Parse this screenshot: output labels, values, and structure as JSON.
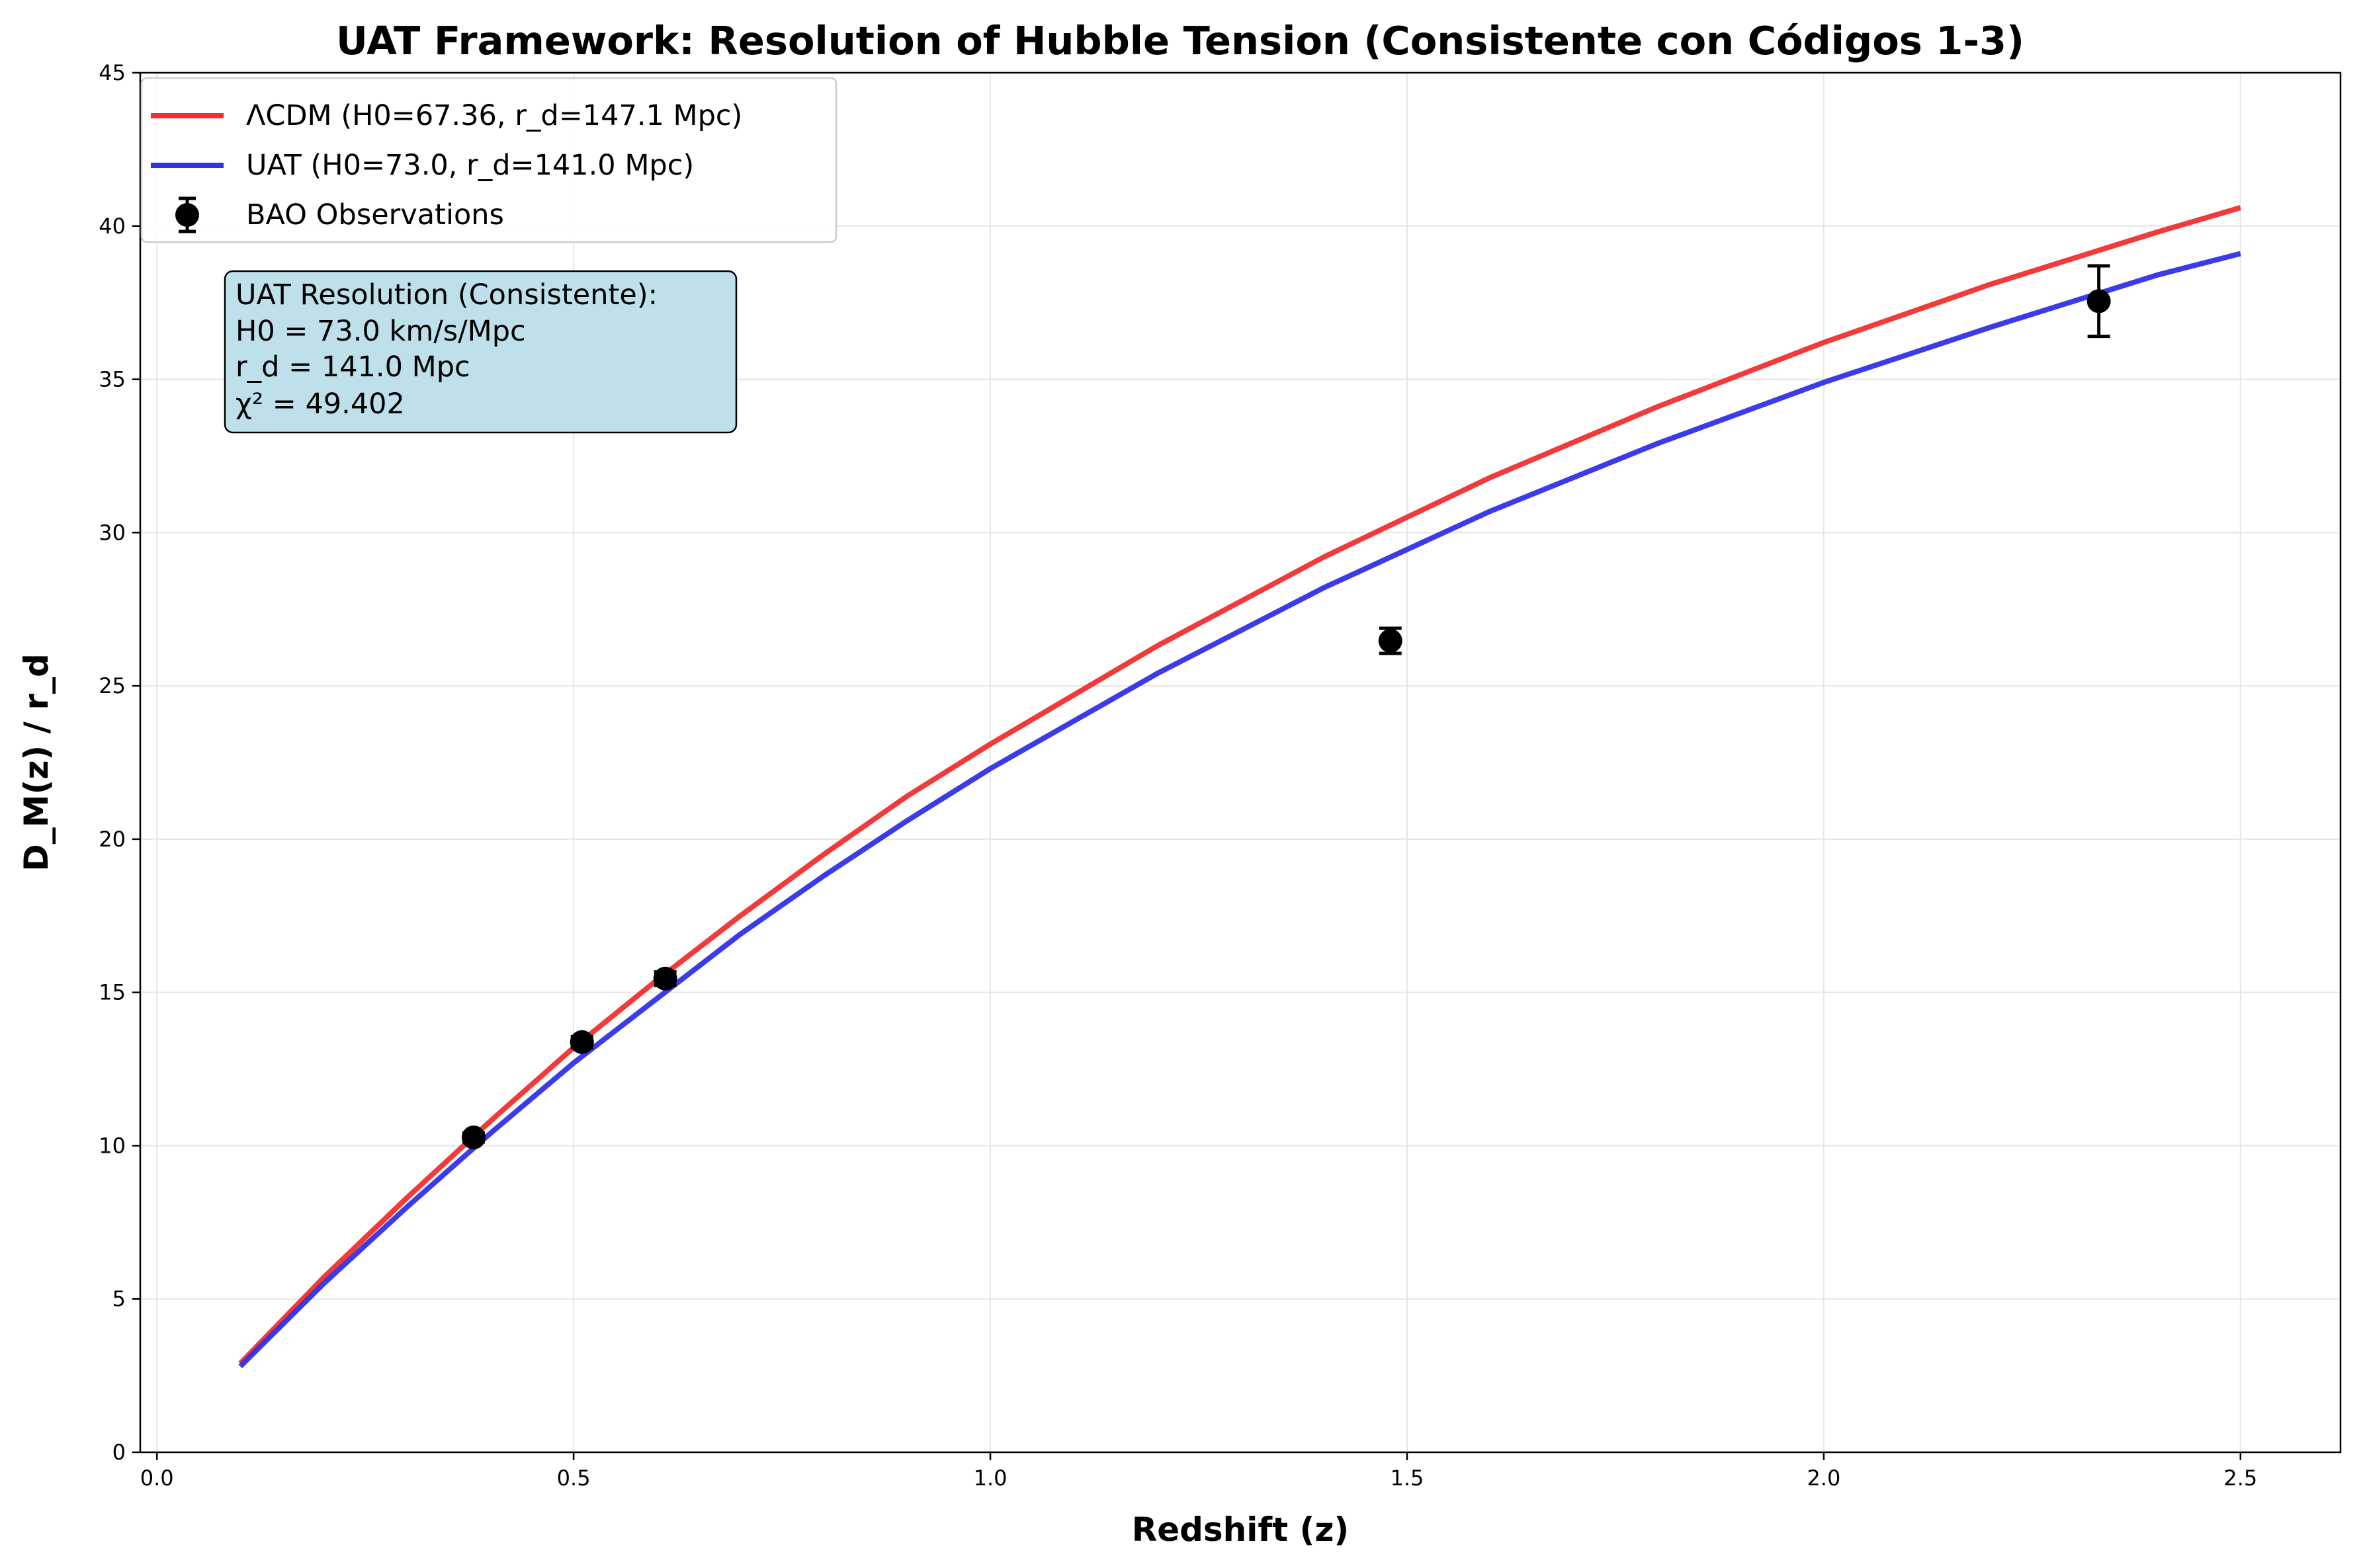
{
  "chart_data": {
    "type": "line",
    "title": "UAT Framework: Resolution of Hubble Tension (Consistente con Códigos 1-3)",
    "xlabel": "Redshift (z)",
    "ylabel": "D_M(z) / r_d",
    "xlim": [
      -0.02,
      2.62
    ],
    "ylim": [
      0,
      45
    ],
    "xticks": [
      0.0,
      0.5,
      1.0,
      1.5,
      2.0,
      2.5
    ],
    "xtick_labels": [
      "0.0",
      "0.5",
      "1.0",
      "1.5",
      "2.0",
      "2.5"
    ],
    "yticks": [
      0,
      5,
      10,
      15,
      20,
      25,
      30,
      35,
      40,
      45
    ],
    "ytick_labels": [
      "0",
      "5",
      "10",
      "15",
      "20",
      "25",
      "30",
      "35",
      "40",
      "45"
    ],
    "grid": true,
    "legend_position": "top-left",
    "series": [
      {
        "name": "ΛCDM (H0=67.36, r_d=147.1 Mpc)",
        "kind": "line",
        "color": "#f03030",
        "x": [
          0.1,
          0.2,
          0.3,
          0.4,
          0.5,
          0.6,
          0.7,
          0.8,
          0.9,
          1.0,
          1.2,
          1.4,
          1.6,
          1.8,
          2.0,
          2.2,
          2.4,
          2.5
        ],
        "y": [
          2.9,
          5.7,
          8.3,
          10.8,
          13.2,
          15.4,
          17.5,
          19.5,
          21.4,
          23.1,
          26.3,
          29.2,
          31.8,
          34.1,
          36.2,
          38.1,
          39.8,
          40.6
        ]
      },
      {
        "name": "UAT (H0=73.0, r_d=141.0 Mpc)",
        "kind": "line",
        "color": "#3030e8",
        "x": [
          0.1,
          0.2,
          0.3,
          0.4,
          0.5,
          0.6,
          0.7,
          0.8,
          0.9,
          1.0,
          1.2,
          1.4,
          1.6,
          1.8,
          2.0,
          2.2,
          2.4,
          2.5
        ],
        "y": [
          2.8,
          5.5,
          8.0,
          10.4,
          12.7,
          14.8,
          16.9,
          18.8,
          20.6,
          22.3,
          25.4,
          28.2,
          30.7,
          32.9,
          34.9,
          36.7,
          38.4,
          39.1
        ]
      },
      {
        "name": "BAO Observations",
        "kind": "errorbar",
        "color": "#000000",
        "x": [
          0.38,
          0.51,
          0.61,
          1.48,
          2.33
        ],
        "y": [
          10.27,
          13.38,
          15.45,
          26.47,
          37.55
        ],
        "yerr": [
          0.15,
          0.18,
          0.22,
          0.41,
          1.15
        ]
      }
    ],
    "annotation": {
      "lines": [
        "UAT Resolution (Consistente):",
        "H0 = 73.0 km/s/Mpc",
        "r_d = 141.0 Mpc",
        "χ² = 49.402"
      ],
      "background": "#bde0ea"
    }
  }
}
